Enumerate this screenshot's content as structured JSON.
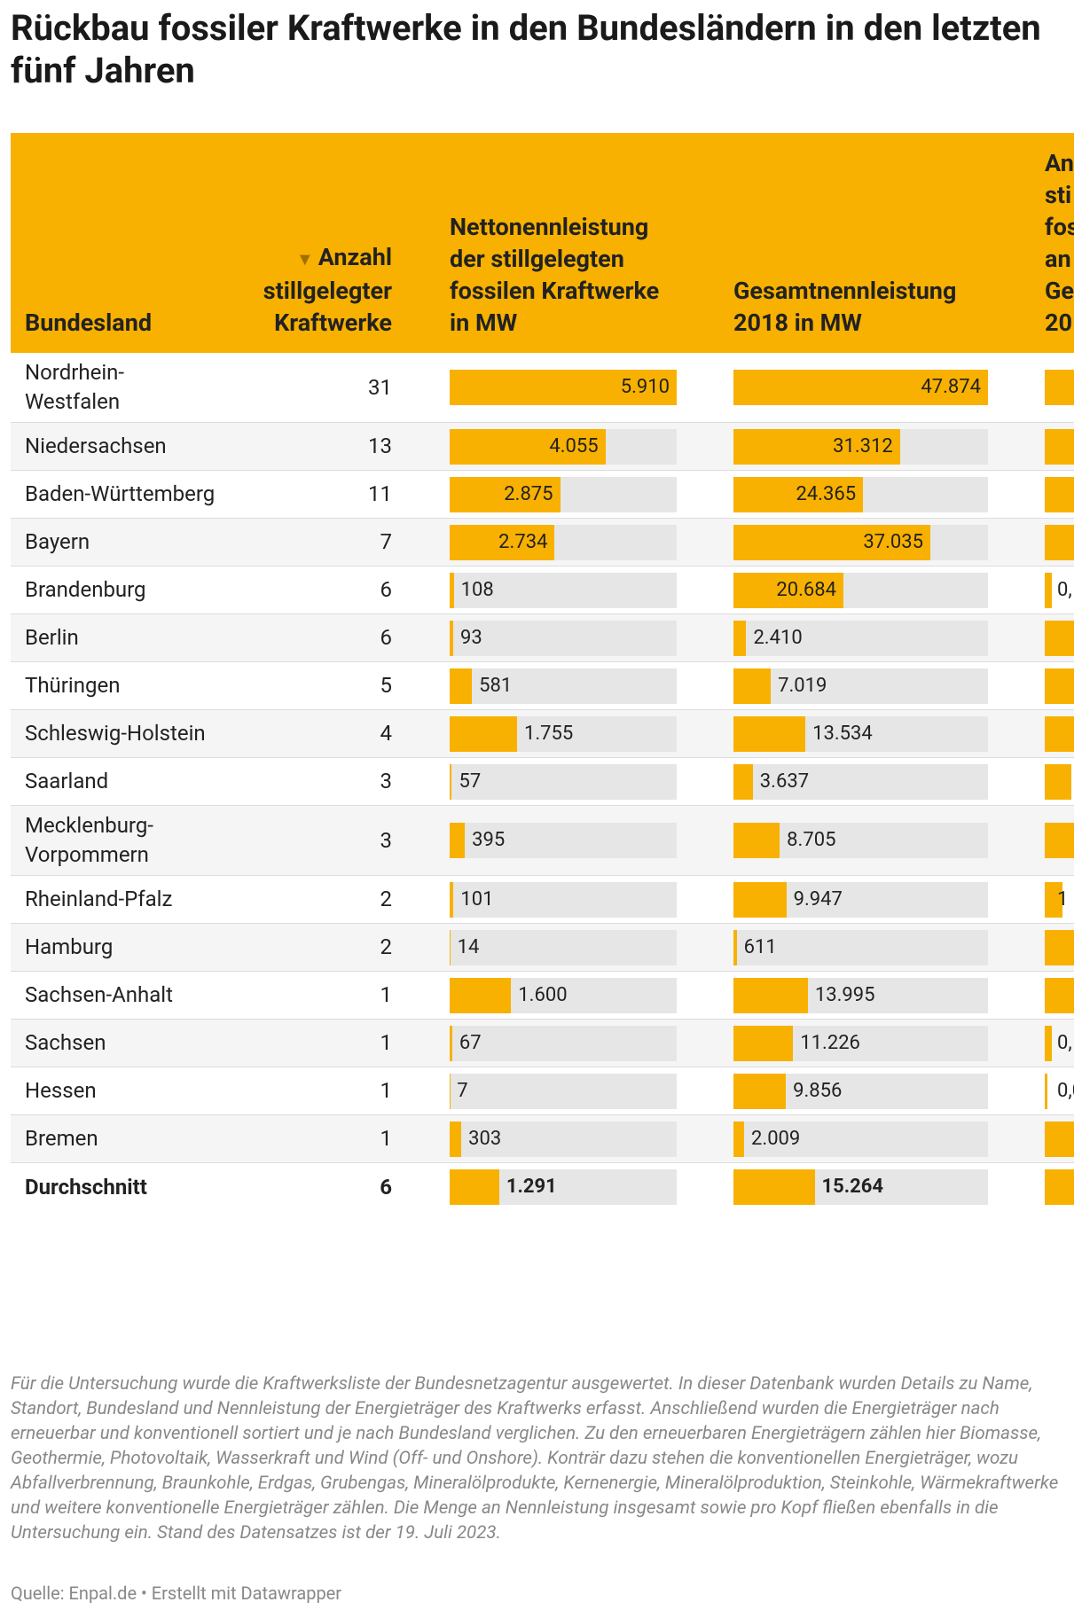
{
  "title": "Rückbau fossiler Kraftwerke in den Bundesländern in den letzten fünf Jahren",
  "table": {
    "headers": {
      "bundesland": "Bundesland",
      "anzahl": "Anzahl stillgelegter Kraftwerke",
      "netto": "Nettonennleistung der stillgelegten fossilen Kraftwerke in MW",
      "gesamt": "Gesamtnennleistung 2018 in MW",
      "clipped_fragments": [
        "An",
        "sti",
        "fos",
        "an",
        "Ge",
        "20"
      ]
    },
    "bundesland": [
      "Nordrhein-Westfalen",
      "Niedersachsen",
      "Baden-Württemberg",
      "Bayern",
      "Brandenburg",
      "Berlin",
      "Thüringen",
      "Schleswig-Holstein",
      "Saarland",
      "Mecklenburg-Vorpommern",
      "Rheinland-Pfalz",
      "Hamburg",
      "Sachsen-Anhalt",
      "Sachsen",
      "Hessen",
      "Bremen",
      "Durchschnitt"
    ],
    "anzahl": [
      31,
      13,
      11,
      7,
      6,
      6,
      5,
      4,
      3,
      3,
      2,
      2,
      1,
      1,
      1,
      1,
      6
    ],
    "netto": {
      "values": [
        5910,
        4055,
        2875,
        2734,
        108,
        93,
        581,
        1755,
        57,
        395,
        101,
        14,
        1600,
        67,
        7,
        303,
        1291
      ],
      "value_labels": [
        "5.910",
        "4.055",
        "2.875",
        "2.734",
        "108",
        "93",
        "581",
        "1.755",
        "57",
        "395",
        "101",
        "14",
        "1.600",
        "67",
        "7",
        "303",
        "1.291"
      ]
    },
    "gesamt": {
      "values": [
        47874,
        31312,
        24365,
        37035,
        20684,
        2410,
        7019,
        13534,
        3637,
        8705,
        9947,
        611,
        13995,
        11226,
        9856,
        2009,
        15264
      ],
      "value_labels": [
        "47.874",
        "31.312",
        "24.365",
        "37.035",
        "20.684",
        "2.410",
        "7.019",
        "13.534",
        "3.637",
        "8.705",
        "9.947",
        "611",
        "13.995",
        "11.226",
        "9.856",
        "2.009",
        "15.264"
      ]
    },
    "clipped_labels": [
      null,
      null,
      null,
      null,
      "0,",
      null,
      null,
      null,
      null,
      null,
      "1",
      null,
      null,
      "0,",
      "0,0",
      null,
      null
    ]
  },
  "footnote": "Für die Untersuchung wurde die Kraftwerksliste der Bundesnetzagentur ausgewertet. In dieser Datenbank wurden Details zu Name, Standort, Bundesland und Nennleistung der Energieträger des Kraftwerks erfasst. Anschließend wurden die Energieträger nach erneuerbar und konventionell sortiert und je nach Bundesland verglichen. Zu den erneuerbaren Energieträgern zählen hier Biomasse, Geothermie, Photovoltaik, Wasserkraft und Wind (Off- und Onshore). Konträr dazu stehen die konventionellen Energieträger, wozu Abfallverbrennung, Braunkohle, Erdgas, Grubengas, Mineralölprodukte, Kernenergie, Mineralölproduktion, Steinkohle, Wärmekraftwerke und weitere konventionelle Energieträger zählen. Die Menge an Nennleistung insgesamt sowie pro Kopf fließen ebenfalls in die Untersuchung ein. Stand des Datensatzes ist der 19. Juli 2023.",
  "source": "Quelle: Enpal.de • Erstellt mit Datawrapper"
}
